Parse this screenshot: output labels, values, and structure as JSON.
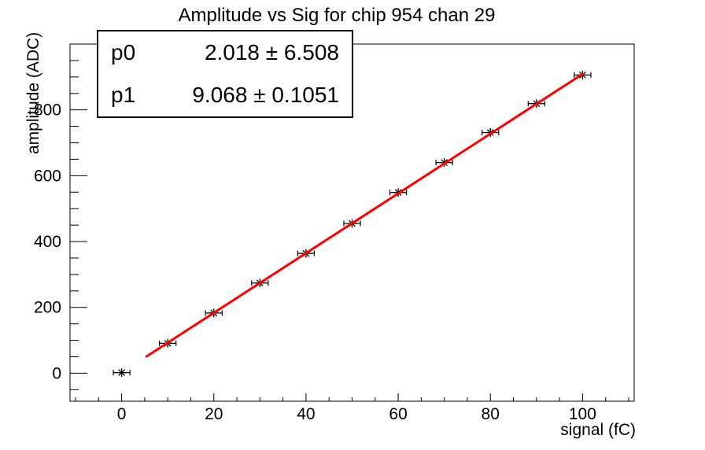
{
  "page": {
    "background": "#ffffff",
    "foreground": "#000000"
  },
  "chart": {
    "title": "Amplitude vs Sig for chip 954 chan 29",
    "x_axis": {
      "title": "signal (fC)"
    },
    "y_axis": {
      "title": "amplitude (ADC)"
    }
  },
  "stats": {
    "rows": [
      {
        "name": "p0",
        "value": "2.018 ± 6.508"
      },
      {
        "name": "p1",
        "value": "9.068 ± 0.1051"
      }
    ]
  },
  "chart_data": {
    "type": "scatter",
    "title": "Amplitude vs Sig for chip 954 chan 29",
    "xlabel": "signal (fC)",
    "ylabel": "amplitude (ADC)",
    "x": [
      0,
      10,
      20,
      30,
      40,
      50,
      60,
      70,
      80,
      90,
      100
    ],
    "y": [
      2,
      91,
      183,
      274,
      364,
      455,
      549,
      640,
      731,
      819,
      906
    ],
    "x_error": 1.8,
    "marker": "asterisk",
    "marker_color": "#000000",
    "frame_color": "#000000",
    "grid": false,
    "legend": "none",
    "xlim": [
      -11.2,
      111.2
    ],
    "ylim": [
      -85,
      1000
    ],
    "x_major_ticks": [
      0,
      20,
      40,
      60,
      80,
      100
    ],
    "x_minor_step": 5,
    "x_major_step": 20,
    "y_major_ticks": [
      0,
      200,
      400,
      600,
      800
    ],
    "y_minor_step": 50,
    "y_major_step": 200,
    "fit": {
      "function": "p0 + p1*x",
      "p0": 2.018,
      "p0_err": 6.508,
      "p1": 9.068,
      "p1_err": 0.1051,
      "x_range": [
        5.4,
        100
      ],
      "color": "#ff0000",
      "line_width": 3
    }
  }
}
